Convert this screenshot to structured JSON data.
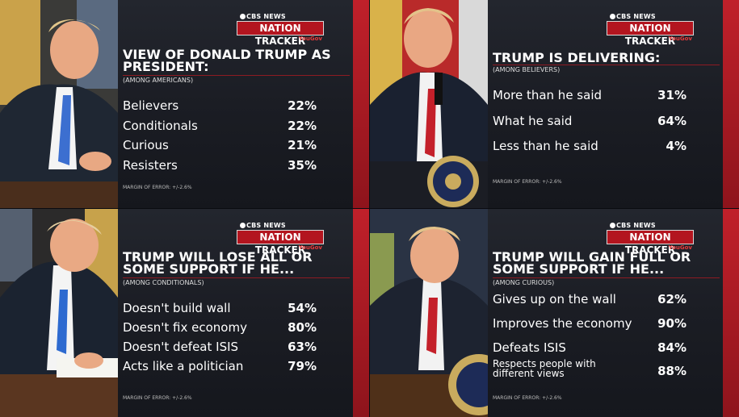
{
  "brand": {
    "network": "CBS NEWS",
    "tracker": "NATION TRACKER",
    "partner": "YouGov"
  },
  "chart_data": [
    {
      "type": "table",
      "title": "VIEW OF DONALD TRUMP AS PRESIDENT:",
      "subtitle": "(AMONG AMERICANS)",
      "categories": [
        "Believers",
        "Conditionals",
        "Curious",
        "Resisters"
      ],
      "values": [
        22,
        22,
        21,
        35
      ],
      "value_labels": [
        "22%",
        "22%",
        "21%",
        "35%"
      ],
      "note": "MARGIN OF ERROR: +/-2.6%"
    },
    {
      "type": "table",
      "title": "TRUMP IS DELIVERING:",
      "subtitle": "(AMONG BELIEVERS)",
      "categories": [
        "More than he said",
        "What he said",
        "Less than he said"
      ],
      "values": [
        31,
        64,
        4
      ],
      "value_labels": [
        "31%",
        "64%",
        "4%"
      ],
      "note": "MARGIN OF ERROR: +/-2.6%"
    },
    {
      "type": "table",
      "title": "TRUMP WILL LOSE ALL OR SOME SUPPORT IF HE...",
      "subtitle": "(AMONG CONDITIONALS)",
      "categories": [
        "Doesn't build wall",
        "Doesn't fix economy",
        "Doesn't defeat ISIS",
        "Acts like a politician"
      ],
      "values": [
        54,
        80,
        63,
        79
      ],
      "value_labels": [
        "54%",
        "80%",
        "63%",
        "79%"
      ],
      "note": "MARGIN OF ERROR: +/-2.6%"
    },
    {
      "type": "table",
      "title": "TRUMP WILL GAIN FULL OR SOME SUPPORT IF HE...",
      "subtitle": "(AMONG CURIOUS)",
      "categories": [
        "Gives up on the wall",
        "Improves the economy",
        "Defeats ISIS",
        "Respects people with different views"
      ],
      "values": [
        62,
        90,
        84,
        88
      ],
      "value_labels": [
        "62%",
        "90%",
        "84%",
        "88%"
      ],
      "note": "MARGIN OF ERROR: +/-2.6%"
    }
  ]
}
